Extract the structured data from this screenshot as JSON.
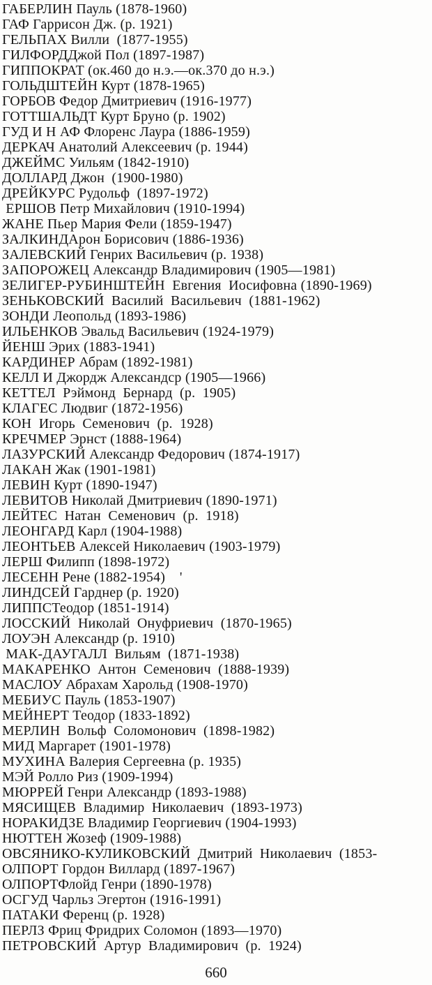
{
  "page": {
    "number": "660",
    "description": "Scanned book page: alphabetical name index of psychologists (Cyrillic), letters Г through П"
  },
  "entries": [
    "ГАБЕРЛИН Пауль (1878-1960)",
    "ГАФ Гаррисон Дж. (р. 1921)",
    "ГЕЛЬПАХ Вилли  (1877-1955)",
    "ГИЛФОРДДжой Пол (1897-1987)",
    "ГИППОКРАТ (ок.460 до н.э.—ок.370 до н.э.)",
    "ГОЛЬДШТЕЙН Курт (1878-1965)",
    "ГОРБОВ Федор Дмитриевич (1916-1977)",
    "ГОТТШАЛЬДТ Курт Бруно (р. 1902)",
    "ГУД И Н АФ Флоренс Лаура (1886-1959)",
    "ДЕРКАЧ Анатолий Алексеевич (р. 1944)",
    "ДЖЕЙМС Уильям (1842-1910)",
    "ДОЛЛАРД Джон  (1900-1980)",
    "ДРЕЙКУРС Рудольф  (1897-1972)",
    " ЕРШОВ Петр Михайлович (1910-1994)",
    "ЖАНЕ Пьер Мария Фели (1859-1947)",
    "ЗАЛКИНДАрон Борисович (1886-1936)",
    "ЗАЛЕВСКИЙ Генрих Васильевич (р. 1938)",
    "ЗАПОРОЖЕЦ Александр Владимирович (1905—1981)",
    "ЗЕЛИГЕР-РУБИНШТЕЙН  Евгения  Иосифовна (1890-1969)",
    "ЗЕНЬКОВСКИЙ  Василий  Васильевич  (1881-1962)",
    "ЗОНДИ Леопольд (1893-1986)",
    "ИЛЬЕНКОВ Эвальд Васильевич (1924-1979)",
    "ЙЕНШ Эрих (1883-1941)",
    "КАРДИНЕР Абрам (1892-1981)",
    "КЕЛЛ И Джордж Александср (1905—1966)",
    "КЕТТЕЛ  Рэймонд  Бернард  (р.  1905)",
    "КЛАГЕС Людвиг (1872-1956)",
    "КОН  Игорь  Семенович  (р.  1928)",
    "КРЕЧМЕР Эрнст (1888-1964)",
    "ЛАЗУРСКИЙ Александр Федорович (1874-1917)",
    "ЛАКАН Жак (1901-1981)",
    "ЛЕВИН Курт (1890-1947)",
    "ЛЕВИТОВ Николай Дмитриевич (1890-1971)",
    "ЛЕЙТЕС  Натан  Семенович  (р.  1918)",
    "ЛЕОНГАРД Карл (1904-1988)",
    "ЛЕОНТЬЕВ Алексей Николаевич (1903-1979)",
    "ЛЕРШ Филипп (1898-1972)",
    "ЛЕСЕНН Рене (1882-1954)    '",
    "ЛИНДСЕЙ Гарднер (р. 1920)",
    "ЛИППСТеодор (1851-1914)",
    "ЛОССКИЙ  Николай  Онуфриевич  (1870-1965)",
    "ЛОУЭН Александр (р. 1910)",
    " МАК-ДАУГАЛЛ  Вильям  (1871-1938)",
    "МАКАРЕНКО  Антон  Семенович  (1888-1939)",
    "МАСЛОУ Абрахам Харольд (1908-1970)",
    "МЕБИУС Пауль (1853-1907)",
    "МЕЙНЕРТ Теодор (1833-1892)",
    "МЕРЛИН  Вольф  Соломонович  (1898-1982)",
    "МИД Маргарет (1901-1978)",
    "МУХИНА Валерия Сергеевна (р. 1935)",
    "МЭЙ Ролло Риз (1909-1994)",
    "МЮРРЕЙ Генри Александр (1893-1988)",
    "МЯСИЩЕВ  Владимир  Николаевич  (1893-1973)",
    "НОРАКИДЗЕ Владимир Георгиевич (1904-1993)",
    "НЮТТЕН Жозеф (1909-1988)",
    "ОВСЯНИКО-КУЛИКОВСКИЙ  Дмитрий  Николаевич  (1853-",
    "ОЛПОРТ Гордон Виллард (1897-1967)",
    "ОЛПОРТФлойд Генри (1890-1978)",
    "ОСГУД Чарльз Эгертон (1916-1991)",
    "ПАТАКИ Ференц (р. 1928)",
    "ПЕРЛЗ Фриц Фридрих Соломон (1893—1970)",
    "ПЕТРОВСКИЙ  Артур  Владимирович  (р.  1924)"
  ]
}
